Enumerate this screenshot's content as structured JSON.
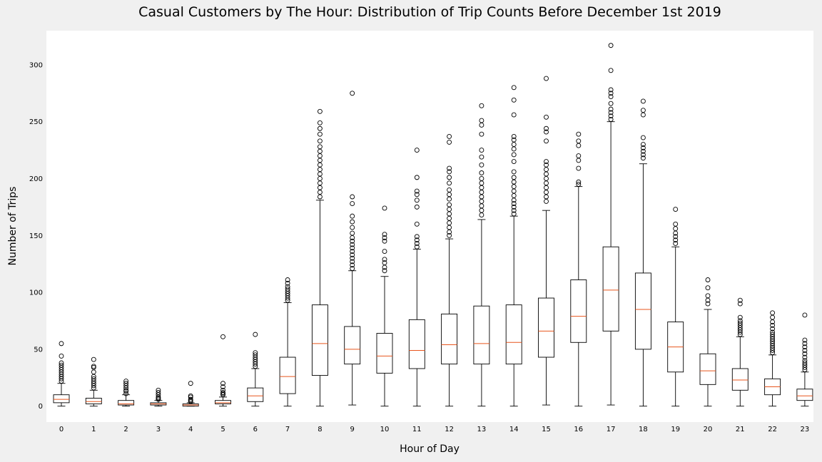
{
  "chart_data": {
    "type": "boxplot",
    "title": "Casual Customers by The Hour: Distribution of Trip Counts Before December 1st 2019",
    "xlabel": "Hour of Day",
    "ylabel": "Number of Trips",
    "ylim": [
      -14,
      330
    ],
    "yticks": [
      0,
      50,
      100,
      150,
      200,
      250,
      300
    ],
    "grid": false,
    "categories": [
      "0",
      "1",
      "2",
      "3",
      "4",
      "5",
      "6",
      "7",
      "8",
      "9",
      "10",
      "11",
      "12",
      "13",
      "14",
      "15",
      "16",
      "17",
      "18",
      "19",
      "20",
      "21",
      "22",
      "23"
    ],
    "boxes": [
      {
        "whisker_low": 0,
        "q1": 3,
        "median": 6,
        "q3": 10,
        "whisker_high": 20,
        "outliers": [
          22,
          24,
          26,
          28,
          30,
          32,
          34,
          36,
          38,
          44,
          55
        ]
      },
      {
        "whisker_low": 0,
        "q1": 2,
        "median": 4,
        "q3": 7,
        "whisker_high": 14,
        "outliers": [
          16,
          18,
          20,
          22,
          24,
          26,
          30,
          34,
          35,
          41
        ]
      },
      {
        "whisker_low": 0,
        "q1": 1,
        "median": 2,
        "q3": 5,
        "whisker_high": 10,
        "outliers": [
          11,
          13,
          14,
          16,
          18,
          20,
          22
        ]
      },
      {
        "whisker_low": 0,
        "q1": 1,
        "median": 2,
        "q3": 3,
        "whisker_high": 5,
        "outliers": [
          6,
          7,
          8,
          10,
          12,
          14
        ]
      },
      {
        "whisker_low": 0,
        "q1": 0,
        "median": 1,
        "q3": 2,
        "whisker_high": 3,
        "outliers": [
          4,
          5,
          6,
          8,
          9,
          20
        ]
      },
      {
        "whisker_low": 0,
        "q1": 2,
        "median": 3,
        "q3": 5,
        "whisker_high": 8,
        "outliers": [
          10,
          11,
          12,
          14,
          17,
          20,
          61
        ]
      },
      {
        "whisker_low": 0,
        "q1": 4,
        "median": 9,
        "q3": 16,
        "whisker_high": 33,
        "outliers": [
          35,
          37,
          39,
          41,
          43,
          45,
          47,
          63
        ]
      },
      {
        "whisker_low": 0,
        "q1": 11,
        "median": 26,
        "q3": 43,
        "whisker_high": 91,
        "outliers": [
          93,
          95,
          97,
          99,
          101,
          103,
          105,
          108,
          111
        ]
      },
      {
        "whisker_low": 0,
        "q1": 27,
        "median": 55,
        "q3": 89,
        "whisker_high": 181,
        "outliers": [
          184,
          188,
          192,
          196,
          200,
          204,
          208,
          212,
          216,
          220,
          224,
          228,
          233,
          239,
          244,
          249,
          259
        ]
      },
      {
        "whisker_low": 1,
        "q1": 37,
        "median": 50,
        "q3": 70,
        "whisker_high": 119,
        "outliers": [
          121,
          124,
          127,
          130,
          133,
          136,
          139,
          142,
          145,
          148,
          152,
          157,
          162,
          167,
          178,
          184,
          275
        ]
      },
      {
        "whisker_low": 0,
        "q1": 29,
        "median": 44,
        "q3": 64,
        "whisker_high": 114,
        "outliers": [
          119,
          122,
          126,
          129,
          136,
          145,
          148,
          151,
          174
        ]
      },
      {
        "whisker_low": 0,
        "q1": 33,
        "median": 49,
        "q3": 76,
        "whisker_high": 138,
        "outliers": [
          140,
          143,
          146,
          149,
          160,
          175,
          181,
          186,
          189,
          201,
          225
        ]
      },
      {
        "whisker_low": 0,
        "q1": 37,
        "median": 54,
        "q3": 81,
        "whisker_high": 147,
        "outliers": [
          150,
          153,
          157,
          161,
          165,
          169,
          173,
          177,
          182,
          186,
          190,
          196,
          201,
          206,
          209,
          232,
          237
        ]
      },
      {
        "whisker_low": 0,
        "q1": 37,
        "median": 55,
        "q3": 88,
        "whisker_high": 164,
        "outliers": [
          168,
          172,
          176,
          180,
          184,
          188,
          192,
          196,
          200,
          205,
          212,
          219,
          225,
          239,
          247,
          251,
          264
        ]
      },
      {
        "whisker_low": 0,
        "q1": 37,
        "median": 56,
        "q3": 89,
        "whisker_high": 167,
        "outliers": [
          169,
          172,
          175,
          178,
          181,
          185,
          189,
          193,
          197,
          201,
          206,
          215,
          221,
          226,
          230,
          234,
          237,
          256,
          269,
          280
        ]
      },
      {
        "whisker_low": 1,
        "q1": 43,
        "median": 66,
        "q3": 95,
        "whisker_high": 172,
        "outliers": [
          180,
          184,
          188,
          192,
          196,
          200,
          204,
          208,
          212,
          215,
          233,
          241,
          244,
          254,
          288
        ]
      },
      {
        "whisker_low": 0,
        "q1": 56,
        "median": 79,
        "q3": 111,
        "whisker_high": 193,
        "outliers": [
          195,
          197,
          209,
          216,
          220,
          229,
          233,
          239
        ]
      },
      {
        "whisker_low": 1,
        "q1": 66,
        "median": 102,
        "q3": 140,
        "whisker_high": 250,
        "outliers": [
          252,
          255,
          258,
          261,
          266,
          272,
          275,
          278,
          295,
          317
        ]
      },
      {
        "whisker_low": 0,
        "q1": 50,
        "median": 85,
        "q3": 117,
        "whisker_high": 213,
        "outliers": [
          218,
          221,
          224,
          227,
          230,
          236,
          256,
          260,
          268
        ]
      },
      {
        "whisker_low": 0,
        "q1": 30,
        "median": 52,
        "q3": 74,
        "whisker_high": 140,
        "outliers": [
          143,
          146,
          149,
          152,
          156,
          160,
          173
        ]
      },
      {
        "whisker_low": 0,
        "q1": 19,
        "median": 31,
        "q3": 46,
        "whisker_high": 85,
        "outliers": [
          90,
          93,
          97,
          104,
          111
        ]
      },
      {
        "whisker_low": 0,
        "q1": 14,
        "median": 23,
        "q3": 33,
        "whisker_high": 61,
        "outliers": [
          63,
          65,
          67,
          69,
          71,
          73,
          75,
          78,
          90,
          93
        ]
      },
      {
        "whisker_low": 0,
        "q1": 10,
        "median": 17,
        "q3": 24,
        "whisker_high": 45,
        "outliers": [
          47,
          49,
          51,
          53,
          55,
          57,
          59,
          61,
          63,
          65,
          68,
          71,
          74,
          78,
          82
        ]
      },
      {
        "whisker_low": 0,
        "q1": 5,
        "median": 9,
        "q3": 15,
        "whisker_high": 30,
        "outliers": [
          32,
          34,
          36,
          38,
          40,
          43,
          46,
          49,
          52,
          55,
          58,
          80
        ]
      }
    ]
  }
}
